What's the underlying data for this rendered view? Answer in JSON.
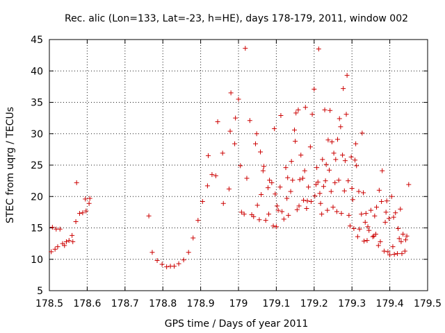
{
  "chart_data": {
    "type": "scatter",
    "title": "Rec. alic (Lon=133, Lat=-23, h=HE), days 178-179, 2011, window 002",
    "xlabel": "GPS time / Days of year 2011",
    "ylabel": "STEC from uqrg / TECUs",
    "xlim": [
      178.5,
      179.5
    ],
    "ylim": [
      5,
      45
    ],
    "x_ticks": [
      178.5,
      178.6,
      178.7,
      178.8,
      178.9,
      179.0,
      179.1,
      179.2,
      179.3,
      179.4,
      179.5
    ],
    "x_tick_labels": [
      "178.5",
      "178.6",
      "178.7",
      "178.8",
      "178.9",
      "179",
      "179.1",
      "179.2",
      "179.3",
      "179.4",
      "179.5"
    ],
    "y_ticks": [
      5,
      10,
      15,
      20,
      25,
      30,
      35,
      40,
      45
    ],
    "y_tick_labels": [
      "5",
      "10",
      "15",
      "20",
      "25",
      "30",
      "35",
      "40",
      "45"
    ],
    "grid": true,
    "marker": "+",
    "color": "#cc0000",
    "series": [
      {
        "name": "STEC",
        "points": [
          [
            178.505,
            11.2
          ],
          [
            178.508,
            15.1
          ],
          [
            178.515,
            11.6
          ],
          [
            178.518,
            14.8
          ],
          [
            178.522,
            12.0
          ],
          [
            178.528,
            14.8
          ],
          [
            178.535,
            12.5
          ],
          [
            178.54,
            12.2
          ],
          [
            178.545,
            12.8
          ],
          [
            178.552,
            13.0
          ],
          [
            178.56,
            13.8
          ],
          [
            178.562,
            12.8
          ],
          [
            178.57,
            16.0
          ],
          [
            178.572,
            22.2
          ],
          [
            178.58,
            17.3
          ],
          [
            178.588,
            17.4
          ],
          [
            178.595,
            19.6
          ],
          [
            178.597,
            17.7
          ],
          [
            178.605,
            18.9
          ],
          [
            178.607,
            19.7
          ],
          [
            178.763,
            16.9
          ],
          [
            178.772,
            11.1
          ],
          [
            178.785,
            9.8
          ],
          [
            178.798,
            9.2
          ],
          [
            178.81,
            8.8
          ],
          [
            178.82,
            8.9
          ],
          [
            178.83,
            8.9
          ],
          [
            178.842,
            9.3
          ],
          [
            178.855,
            9.9
          ],
          [
            178.868,
            11.1
          ],
          [
            178.88,
            13.4
          ],
          [
            178.893,
            16.2
          ],
          [
            178.905,
            19.2
          ],
          [
            178.918,
            21.7
          ],
          [
            178.92,
            26.5
          ],
          [
            178.93,
            23.5
          ],
          [
            178.94,
            23.3
          ],
          [
            178.945,
            31.9
          ],
          [
            178.958,
            26.9
          ],
          [
            178.96,
            18.9
          ],
          [
            178.975,
            21.2
          ],
          [
            178.978,
            30.4
          ],
          [
            178.98,
            36.5
          ],
          [
            178.99,
            28.4
          ],
          [
            178.992,
            32.5
          ],
          [
            179.0,
            35.5
          ],
          [
            179.005,
            24.9
          ],
          [
            179.008,
            17.5
          ],
          [
            179.015,
            17.2
          ],
          [
            179.018,
            43.6
          ],
          [
            179.022,
            22.9
          ],
          [
            179.03,
            32.1
          ],
          [
            179.035,
            17.1
          ],
          [
            179.04,
            16.8
          ],
          [
            179.045,
            28.4
          ],
          [
            179.048,
            30.0
          ],
          [
            179.05,
            18.6
          ],
          [
            179.055,
            16.3
          ],
          [
            179.058,
            27.1
          ],
          [
            179.06,
            20.3
          ],
          [
            179.065,
            24.1
          ],
          [
            179.067,
            24.8
          ],
          [
            179.072,
            16.2
          ],
          [
            179.078,
            21.4
          ],
          [
            179.08,
            17.2
          ],
          [
            179.082,
            22.6
          ],
          [
            179.088,
            22.2
          ],
          [
            179.092,
            15.3
          ],
          [
            179.095,
            30.8
          ],
          [
            179.097,
            20.4
          ],
          [
            179.1,
            15.2
          ],
          [
            179.102,
            18.5
          ],
          [
            179.105,
            17.8
          ],
          [
            179.11,
            21.5
          ],
          [
            179.112,
            32.9
          ],
          [
            179.115,
            17.6
          ],
          [
            179.12,
            16.4
          ],
          [
            179.125,
            24.6
          ],
          [
            179.128,
            19.7
          ],
          [
            179.13,
            23.0
          ],
          [
            179.132,
            17.0
          ],
          [
            179.138,
            20.8
          ],
          [
            179.14,
            25.6
          ],
          [
            179.143,
            22.6
          ],
          [
            179.148,
            30.6
          ],
          [
            179.15,
            28.8
          ],
          [
            179.152,
            33.3
          ],
          [
            179.155,
            17.9
          ],
          [
            179.158,
            33.8
          ],
          [
            179.16,
            18.5
          ],
          [
            179.162,
            22.7
          ],
          [
            179.165,
            26.6
          ],
          [
            179.17,
            22.9
          ],
          [
            179.172,
            19.4
          ],
          [
            179.175,
            24.1
          ],
          [
            179.177,
            34.2
          ],
          [
            179.18,
            18.1
          ],
          [
            179.182,
            19.3
          ],
          [
            179.185,
            21.5
          ],
          [
            179.19,
            27.9
          ],
          [
            179.192,
            19.2
          ],
          [
            179.195,
            33.1
          ],
          [
            179.2,
            37.1
          ],
          [
            179.202,
            20.1
          ],
          [
            179.205,
            21.9
          ],
          [
            179.207,
            24.6
          ],
          [
            179.21,
            22.3
          ],
          [
            179.212,
            43.5
          ],
          [
            179.215,
            20.5
          ],
          [
            179.217,
            18.9
          ],
          [
            179.22,
            17.2
          ],
          [
            179.222,
            25.9
          ],
          [
            179.225,
            21.6
          ],
          [
            179.228,
            33.8
          ],
          [
            179.23,
            22.5
          ],
          [
            179.232,
            25.1
          ],
          [
            179.235,
            17.8
          ],
          [
            179.237,
            29.0
          ],
          [
            179.24,
            24.2
          ],
          [
            179.242,
            33.7
          ],
          [
            179.245,
            20.8
          ],
          [
            179.247,
            28.7
          ],
          [
            179.25,
            18.3
          ],
          [
            179.252,
            26.9
          ],
          [
            179.255,
            22.2
          ],
          [
            179.257,
            25.9
          ],
          [
            179.26,
            17.6
          ],
          [
            179.262,
            29.1
          ],
          [
            179.265,
            22.6
          ],
          [
            179.267,
            32.4
          ],
          [
            179.27,
            31.1
          ],
          [
            179.272,
            17.3
          ],
          [
            179.275,
            26.6
          ],
          [
            179.277,
            37.2
          ],
          [
            179.28,
            20.9
          ],
          [
            179.282,
            25.7
          ],
          [
            179.285,
            33.1
          ],
          [
            179.287,
            39.3
          ],
          [
            179.29,
            22.5
          ],
          [
            179.292,
            17.0
          ],
          [
            179.295,
            15.3
          ],
          [
            179.298,
            26.3
          ],
          [
            179.3,
            21.3
          ],
          [
            179.302,
            19.5
          ],
          [
            179.305,
            14.9
          ],
          [
            179.308,
            25.8
          ],
          [
            179.31,
            28.4
          ],
          [
            179.312,
            24.9
          ],
          [
            179.315,
            13.6
          ],
          [
            179.318,
            20.8
          ],
          [
            179.32,
            14.8
          ],
          [
            179.325,
            17.2
          ],
          [
            179.327,
            30.1
          ],
          [
            179.33,
            20.6
          ],
          [
            179.332,
            12.9
          ],
          [
            179.335,
            15.9
          ],
          [
            179.337,
            17.3
          ],
          [
            179.34,
            13.0
          ],
          [
            179.342,
            15.2
          ],
          [
            179.345,
            14.6
          ],
          [
            179.35,
            17.8
          ],
          [
            179.355,
            13.6
          ],
          [
            179.358,
            13.7
          ],
          [
            179.36,
            16.9
          ],
          [
            179.363,
            14.0
          ],
          [
            179.365,
            18.3
          ],
          [
            179.37,
            12.2
          ],
          [
            179.372,
            21.0
          ],
          [
            179.375,
            12.8
          ],
          [
            179.378,
            19.2
          ],
          [
            179.38,
            24.1
          ],
          [
            179.385,
            11.3
          ],
          [
            179.388,
            15.9
          ],
          [
            179.39,
            17.5
          ],
          [
            179.392,
            19.3
          ],
          [
            179.395,
            11.2
          ],
          [
            179.398,
            16.5
          ],
          [
            179.4,
            10.7
          ],
          [
            179.405,
            20.0
          ],
          [
            179.408,
            12.0
          ],
          [
            179.41,
            16.7
          ],
          [
            179.412,
            10.8
          ],
          [
            179.415,
            17.4
          ],
          [
            179.42,
            10.9
          ],
          [
            179.422,
            14.9
          ],
          [
            179.425,
            13.3
          ],
          [
            179.428,
            18.0
          ],
          [
            179.43,
            12.8
          ],
          [
            179.432,
            10.9
          ],
          [
            179.435,
            14.0
          ],
          [
            179.44,
            11.3
          ],
          [
            179.442,
            13.1
          ],
          [
            179.445,
            13.7
          ],
          [
            179.45,
            21.9
          ]
        ]
      }
    ]
  }
}
